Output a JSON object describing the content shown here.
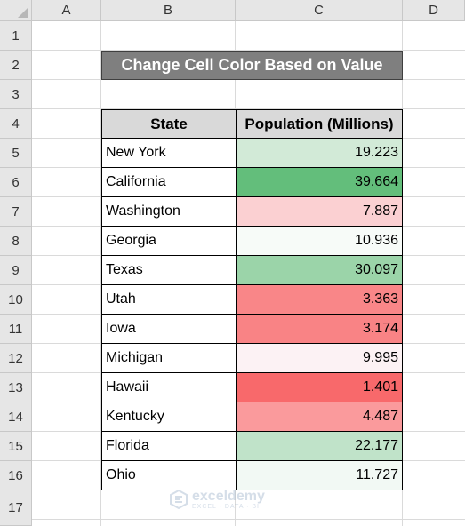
{
  "columns": [
    "A",
    "B",
    "C",
    "D"
  ],
  "rows": [
    "1",
    "2",
    "3",
    "4",
    "5",
    "6",
    "7",
    "8",
    "9",
    "10",
    "11",
    "12",
    "13",
    "14",
    "15",
    "16",
    "17"
  ],
  "title": "Change Cell Color Based on Value",
  "table": {
    "headers": [
      "State",
      "Population (Millions)"
    ],
    "rows": [
      {
        "state": "New York",
        "population": "19.223",
        "color": "#d2ead7"
      },
      {
        "state": "California",
        "population": "39.664",
        "color": "#63be7b"
      },
      {
        "state": "Washington",
        "population": "7.887",
        "color": "#fbd0d2"
      },
      {
        "state": "Georgia",
        "population": "10.936",
        "color": "#f7fbf8"
      },
      {
        "state": "Texas",
        "population": "30.097",
        "color": "#9bd4a9"
      },
      {
        "state": "Utah",
        "population": "3.363",
        "color": "#f98688"
      },
      {
        "state": "Iowa",
        "population": "3.174",
        "color": "#f98385"
      },
      {
        "state": "Michigan",
        "population": "9.995",
        "color": "#fcf2f4"
      },
      {
        "state": "Hawaii",
        "population": "1.401",
        "color": "#f8696b"
      },
      {
        "state": "Kentucky",
        "population": "4.487",
        "color": "#fa9a9c"
      },
      {
        "state": "Florida",
        "population": "22.177",
        "color": "#c0e3c9"
      },
      {
        "state": "Ohio",
        "population": "11.727",
        "color": "#f2f9f4"
      }
    ]
  },
  "watermark": {
    "brand": "exceldemy",
    "tagline": "EXCEL · DATA · BI",
    "icon": "exceldemy-logo-icon"
  }
}
